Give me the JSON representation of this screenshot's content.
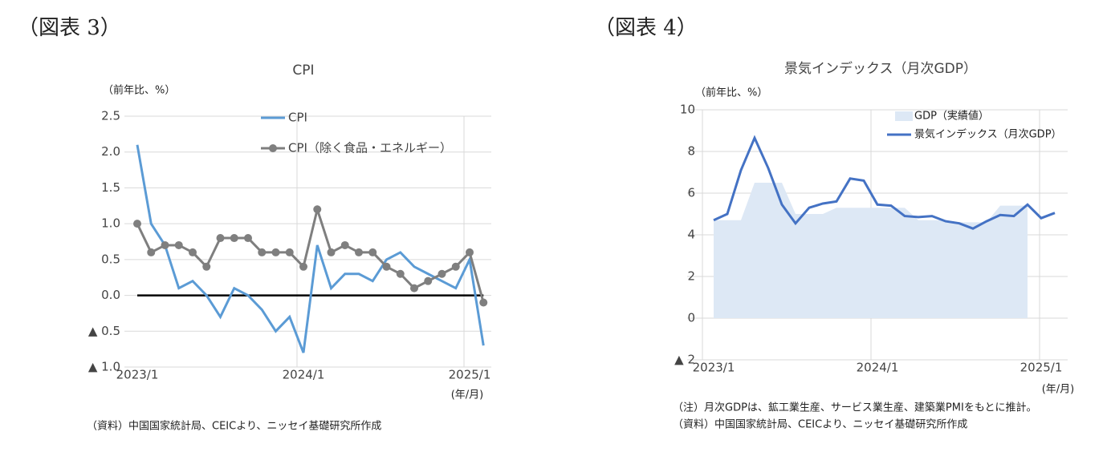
{
  "chart_data": [
    {
      "type": "line",
      "figure_label": "（図表 3）",
      "title": "CPI",
      "y_label": "（前年比、%）",
      "x_unit": "(年/月)",
      "source": "（資料）中国国家統計局、CEICより、ニッセイ基礎研究所作成",
      "categories": [
        "2023/1",
        null,
        null,
        null,
        null,
        null,
        null,
        null,
        null,
        null,
        null,
        null,
        "2024/1",
        null,
        null,
        null,
        null,
        null,
        null,
        null,
        null,
        null,
        null,
        null,
        "2025/1",
        null
      ],
      "series": [
        {
          "name": "CPI",
          "color": "#5b9bd5",
          "kind": "line",
          "marker": false,
          "values": [
            2.1,
            1.0,
            0.7,
            0.1,
            0.2,
            0.0,
            -0.3,
            0.1,
            0.0,
            -0.2,
            -0.5,
            -0.3,
            -0.8,
            0.7,
            0.1,
            0.3,
            0.3,
            0.2,
            0.5,
            0.6,
            0.4,
            0.3,
            0.2,
            0.1,
            0.5,
            -0.7
          ]
        },
        {
          "name": "CPI（除く食品・エネルギー）",
          "color": "#7f7f7f",
          "kind": "line",
          "marker": true,
          "values": [
            1.0,
            0.6,
            0.7,
            0.7,
            0.6,
            0.4,
            0.8,
            0.8,
            0.8,
            0.6,
            0.6,
            0.6,
            0.4,
            1.2,
            0.6,
            0.7,
            0.6,
            0.6,
            0.4,
            0.3,
            0.1,
            0.2,
            0.3,
            0.4,
            0.6,
            -0.1
          ]
        }
      ],
      "ylim": [
        -1.0,
        2.5
      ],
      "yticks": [
        {
          "value": 2.5,
          "label": "2.5"
        },
        {
          "value": 2.0,
          "label": "2.0"
        },
        {
          "value": 1.5,
          "label": "1.5"
        },
        {
          "value": 1.0,
          "label": "1.0"
        },
        {
          "value": 0.5,
          "label": "0.5"
        },
        {
          "value": 0,
          "label": "0.0"
        },
        {
          "value": -0.5,
          "label": "▲ 0.5"
        },
        {
          "value": -1.0,
          "label": "▲ 1.0"
        }
      ],
      "grid": true,
      "zero_line": true,
      "legend": "top-center"
    },
    {
      "type": "line",
      "figure_label": "（図表 4）",
      "title": "景気インデックス（月次GDP）",
      "y_label": "（前年比、%）",
      "x_unit": "(年/月)",
      "note": "（注）月次GDPは、鉱工業生産、サービス業生産、建築業PMIをもとに推計。",
      "source": "（資料）中国国家統計局、CEICより、ニッセイ基礎研究所作成",
      "categories": [
        "2023/1",
        null,
        null,
        null,
        null,
        null,
        null,
        null,
        null,
        null,
        null,
        null,
        "2024/1",
        null,
        null,
        null,
        null,
        null,
        null,
        null,
        null,
        null,
        null,
        null,
        "2025/1",
        null
      ],
      "series": [
        {
          "name": "GDP（実績値）",
          "color": "#dde8f5",
          "kind": "area",
          "values": [
            4.7,
            4.7,
            4.7,
            6.5,
            6.5,
            6.5,
            5.0,
            5.0,
            5.0,
            5.3,
            5.3,
            5.3,
            5.3,
            5.3,
            5.3,
            4.7,
            4.7,
            4.7,
            4.6,
            4.6,
            4.6,
            5.4,
            5.4,
            5.4,
            null,
            null
          ]
        },
        {
          "name": "景気インデックス（月次GDP）",
          "color": "#4472c4",
          "kind": "line",
          "marker": false,
          "values": [
            4.7,
            5.0,
            7.1,
            8.65,
            7.2,
            5.45,
            4.55,
            5.3,
            5.5,
            5.6,
            6.7,
            6.6,
            5.45,
            5.4,
            4.9,
            4.85,
            4.9,
            4.65,
            4.55,
            4.3,
            4.65,
            4.95,
            4.9,
            5.45,
            4.8,
            5.05
          ]
        }
      ],
      "ylim": [
        -2,
        10
      ],
      "yticks": [
        10,
        8,
        6,
        4,
        2,
        0,
        {
          "value": -2,
          "label": "▲ 2"
        }
      ],
      "grid": true,
      "zero_line": false,
      "legend": "top-right"
    }
  ]
}
